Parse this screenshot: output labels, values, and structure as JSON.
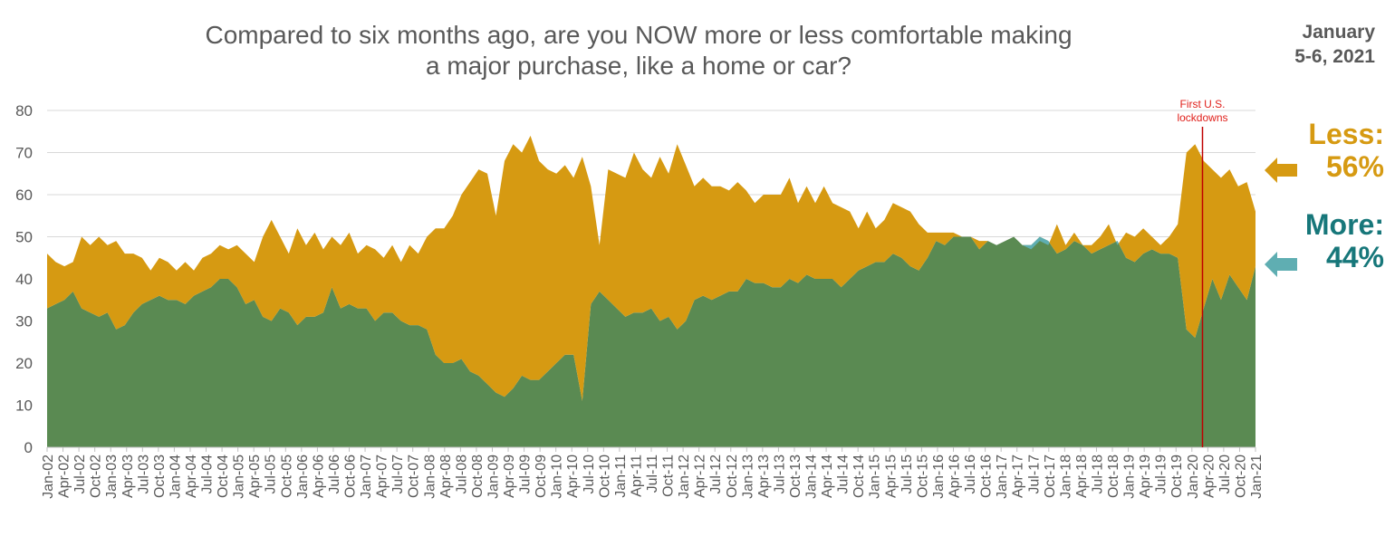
{
  "title_line1": "Compared to six months ago, are you NOW more or less comfortable making",
  "title_line2": "a major purchase, like a home or car?",
  "date_line1": "January",
  "date_line2": "5-6, 2021",
  "annotation_line1": "First U.S.",
  "annotation_line2": "lockdowns",
  "callouts": {
    "less_label": "Less:",
    "less_value": "56%",
    "more_label": "More:",
    "more_value": "44%"
  },
  "colors": {
    "less": "#D69A12",
    "more": "#5A8A52",
    "overlap": "#5FAEB2",
    "grid": "#D9D9D9",
    "lockdown_line": "#C00000"
  },
  "chart_data": {
    "type": "area",
    "title": "Compared to six months ago, are you NOW more or less comfortable making a major purchase, like a home or car?",
    "ylim": [
      0,
      80
    ],
    "yticks": [
      0,
      10,
      20,
      30,
      40,
      50,
      60,
      70,
      80
    ],
    "grid": true,
    "x_tick_labels": [
      "Jan-02",
      "Apr-02",
      "Jul-02",
      "Oct-02",
      "Jan-03",
      "Apr-03",
      "Jul-03",
      "Oct-03",
      "Jan-04",
      "Apr-04",
      "Jul-04",
      "Oct-04",
      "Jan-05",
      "Apr-05",
      "Jul-05",
      "Oct-05",
      "Jan-06",
      "Apr-06",
      "Jul-06",
      "Oct-06",
      "Jan-07",
      "Apr-07",
      "Jul-07",
      "Oct-07",
      "Jan-08",
      "Apr-08",
      "Jul-08",
      "Oct-08",
      "Jan-09",
      "Apr-09",
      "Jul-09",
      "Oct-09",
      "Jan-10",
      "Apr-10",
      "Jul-10",
      "Oct-10",
      "Jan-11",
      "Apr-11",
      "Jul-11",
      "Oct-11",
      "Jan-12",
      "Apr-12",
      "Jul-12",
      "Oct-12",
      "Jan-13",
      "Apr-13",
      "Jul-13",
      "Oct-13",
      "Jan-14",
      "Apr-14",
      "Jul-14",
      "Oct-14",
      "Jan-15",
      "Apr-15",
      "Jul-15",
      "Oct-15",
      "Jan-16",
      "Apr-16",
      "Jul-16",
      "Oct-16",
      "Jan-17",
      "Apr-17",
      "Jul-17",
      "Oct-17",
      "Jan-18",
      "Apr-18",
      "Jul-18",
      "Oct-18",
      "Jan-19",
      "Apr-19",
      "Jul-19",
      "Oct-19",
      "Jan-20",
      "Apr-20",
      "Jul-20",
      "Oct-20",
      "Jan-21"
    ],
    "lockdown_date": "Mar-20",
    "series": [
      {
        "name": "Less",
        "values": [
          46,
          44,
          43,
          44,
          50,
          48,
          50,
          48,
          49,
          46,
          46,
          45,
          42,
          45,
          44,
          42,
          44,
          42,
          45,
          46,
          48,
          47,
          48,
          46,
          44,
          50,
          54,
          50,
          46,
          52,
          48,
          51,
          47,
          50,
          48,
          51,
          46,
          48,
          47,
          45,
          48,
          44,
          48,
          46,
          50,
          52,
          52,
          55,
          60,
          63,
          66,
          65,
          55,
          68,
          72,
          70,
          74,
          68,
          66,
          65,
          67,
          64,
          69,
          62,
          48,
          66,
          65,
          64,
          70,
          66,
          64,
          69,
          65,
          72,
          67,
          62,
          64,
          62,
          62,
          61,
          63,
          61,
          58,
          60,
          60,
          60,
          64,
          58,
          62,
          58,
          62,
          58,
          57,
          56,
          52,
          56,
          52,
          54,
          58,
          57,
          56,
          53,
          51,
          51,
          51,
          51,
          50,
          50,
          49,
          49,
          48,
          49,
          50,
          48,
          47,
          49,
          48,
          53,
          48,
          51,
          48,
          48,
          50,
          53,
          48,
          51,
          50,
          52,
          50,
          48,
          50,
          53,
          70,
          72,
          68,
          66,
          64,
          66,
          62,
          63,
          56
        ]
      },
      {
        "name": "More",
        "values": [
          33,
          34,
          35,
          37,
          33,
          32,
          31,
          32,
          28,
          29,
          32,
          34,
          35,
          36,
          35,
          35,
          34,
          36,
          37,
          38,
          40,
          40,
          38,
          34,
          35,
          31,
          30,
          33,
          32,
          29,
          31,
          31,
          32,
          38,
          33,
          34,
          33,
          33,
          30,
          32,
          32,
          30,
          29,
          29,
          28,
          22,
          20,
          20,
          21,
          18,
          17,
          15,
          13,
          12,
          14,
          17,
          16,
          16,
          18,
          20,
          22,
          22,
          11,
          34,
          37,
          35,
          33,
          31,
          32,
          32,
          33,
          30,
          31,
          28,
          30,
          35,
          36,
          35,
          36,
          37,
          37,
          40,
          39,
          39,
          38,
          38,
          40,
          39,
          41,
          40,
          40,
          40,
          38,
          40,
          42,
          43,
          44,
          44,
          46,
          45,
          43,
          42,
          45,
          49,
          48,
          50,
          50,
          50,
          47,
          49,
          48,
          49,
          50,
          48,
          48,
          50,
          49,
          46,
          47,
          49,
          48,
          46,
          47,
          48,
          49,
          45,
          44,
          46,
          47,
          46,
          46,
          45,
          28,
          26,
          33,
          40,
          35,
          41,
          38,
          35,
          43
        ]
      }
    ]
  }
}
